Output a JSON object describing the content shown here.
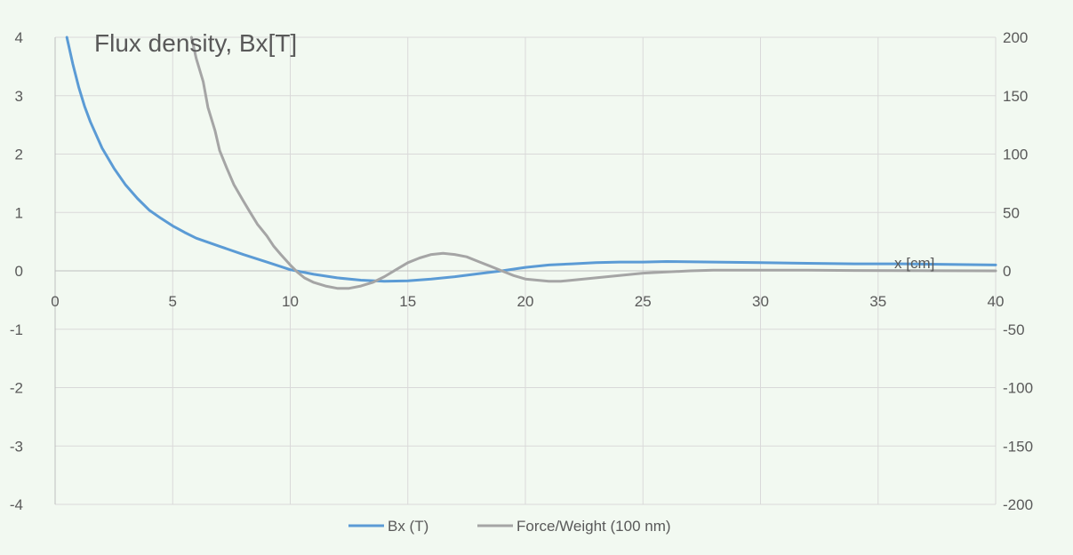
{
  "chart_data": {
    "type": "line",
    "title": "Flux density, Bx[T]",
    "xlabel_annotation": "x [cm]",
    "grid": true,
    "legend_position": "bottom",
    "x_axis": {
      "min": 0,
      "max": 40,
      "ticks": [
        0,
        5,
        10,
        15,
        20,
        25,
        30,
        35,
        40
      ],
      "tick_labels": [
        "0",
        "5",
        "10",
        "15",
        "20",
        "25",
        "30",
        "35",
        "40"
      ]
    },
    "y_axis_left": {
      "min": -4,
      "max": 4,
      "ticks": [
        4,
        3,
        2,
        1,
        0,
        -1,
        -2,
        -3,
        -4
      ],
      "tick_labels": [
        "4",
        "3",
        "2",
        "1",
        "0",
        "-1",
        "-2",
        "-3",
        "-4"
      ]
    },
    "y_axis_right": {
      "min": -200,
      "max": 200,
      "ticks": [
        200,
        150,
        100,
        50,
        0,
        -50,
        -100,
        -150,
        -200
      ],
      "tick_labels": [
        "200",
        "150",
        "100",
        "50",
        "0",
        "-50",
        "-100",
        "-150",
        "-200"
      ]
    },
    "series": [
      {
        "name": "Bx (T)",
        "axis": "left",
        "color": "#5B9BD5",
        "points": [
          [
            0.5,
            4.0
          ],
          [
            0.75,
            3.55
          ],
          [
            1,
            3.15
          ],
          [
            1.25,
            2.82
          ],
          [
            1.5,
            2.55
          ],
          [
            2,
            2.1
          ],
          [
            2.5,
            1.76
          ],
          [
            3,
            1.47
          ],
          [
            3.5,
            1.24
          ],
          [
            4,
            1.04
          ],
          [
            4.5,
            0.9
          ],
          [
            5,
            0.77
          ],
          [
            5.5,
            0.66
          ],
          [
            6,
            0.56
          ],
          [
            7,
            0.42
          ],
          [
            8,
            0.28
          ],
          [
            9,
            0.15
          ],
          [
            10,
            0.02
          ],
          [
            11,
            -0.06
          ],
          [
            12,
            -0.12
          ],
          [
            13,
            -0.16
          ],
          [
            14,
            -0.18
          ],
          [
            15,
            -0.17
          ],
          [
            16,
            -0.14
          ],
          [
            17,
            -0.1
          ],
          [
            18,
            -0.05
          ],
          [
            19,
            0.0
          ],
          [
            20,
            0.06
          ],
          [
            21,
            0.1
          ],
          [
            22,
            0.12
          ],
          [
            23,
            0.14
          ],
          [
            24,
            0.15
          ],
          [
            25,
            0.15
          ],
          [
            26,
            0.16
          ],
          [
            28,
            0.15
          ],
          [
            30,
            0.14
          ],
          [
            32,
            0.13
          ],
          [
            34,
            0.12
          ],
          [
            36,
            0.12
          ],
          [
            38,
            0.11
          ],
          [
            40,
            0.1
          ]
        ]
      },
      {
        "name": "Force/Weight (100 nm)",
        "axis": "right",
        "color": "#A5A5A5",
        "points": [
          [
            5.8,
            200
          ],
          [
            6,
            182
          ],
          [
            6.3,
            162
          ],
          [
            6.5,
            140
          ],
          [
            6.8,
            120
          ],
          [
            7,
            103
          ],
          [
            7.3,
            88
          ],
          [
            7.6,
            74
          ],
          [
            8,
            60
          ],
          [
            8.3,
            50
          ],
          [
            8.6,
            40
          ],
          [
            9,
            30
          ],
          [
            9.3,
            21
          ],
          [
            9.6,
            14
          ],
          [
            10,
            5
          ],
          [
            10.3,
            -1
          ],
          [
            10.6,
            -6
          ],
          [
            11,
            -10
          ],
          [
            11.5,
            -13
          ],
          [
            12,
            -15
          ],
          [
            12.5,
            -15
          ],
          [
            13,
            -13
          ],
          [
            13.5,
            -10
          ],
          [
            14,
            -5
          ],
          [
            14.5,
            1
          ],
          [
            15,
            7
          ],
          [
            15.5,
            11
          ],
          [
            16,
            14
          ],
          [
            16.5,
            15
          ],
          [
            17,
            14
          ],
          [
            17.5,
            12
          ],
          [
            18,
            8
          ],
          [
            18.5,
            4
          ],
          [
            19,
            0
          ],
          [
            19.5,
            -4
          ],
          [
            20,
            -7
          ],
          [
            20.5,
            -8
          ],
          [
            21,
            -9
          ],
          [
            21.5,
            -9
          ],
          [
            22,
            -8
          ],
          [
            23,
            -6
          ],
          [
            24,
            -4
          ],
          [
            25,
            -2
          ],
          [
            26,
            -1
          ],
          [
            27,
            0
          ],
          [
            28,
            0.5
          ],
          [
            29,
            0.5
          ],
          [
            30,
            0.5
          ],
          [
            32,
            0.5
          ],
          [
            34,
            0.3
          ],
          [
            36,
            0.2
          ],
          [
            38,
            0.1
          ],
          [
            40,
            0
          ]
        ]
      }
    ]
  }
}
